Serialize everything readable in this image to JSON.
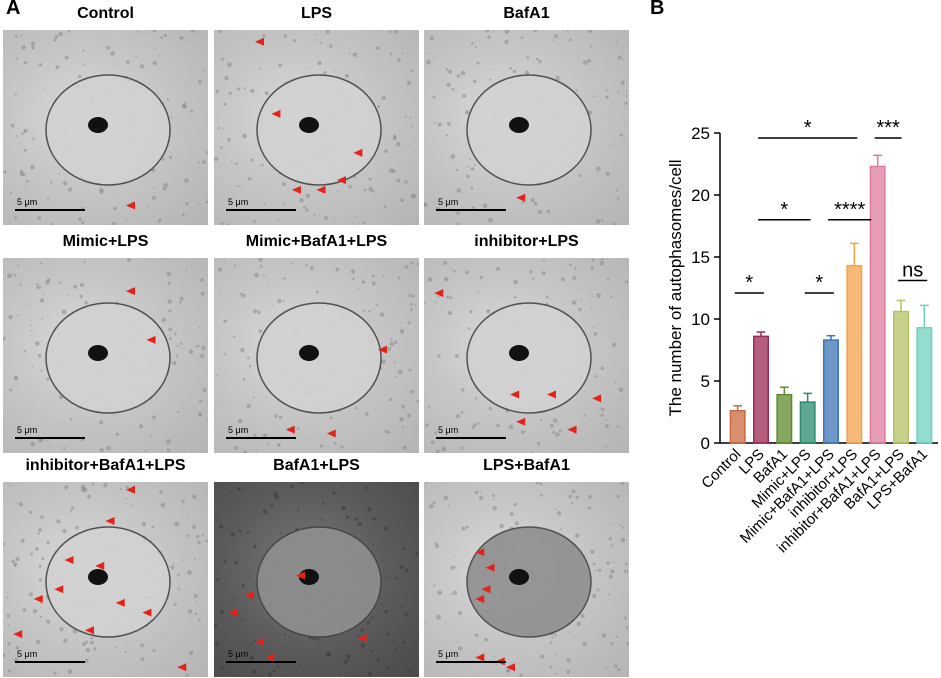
{
  "panel_a": {
    "letter": "A",
    "scale_label": "5 μm",
    "images": [
      {
        "title": "Control",
        "tone": "light",
        "nucleus": "light"
      },
      {
        "title": "LPS",
        "tone": "light",
        "nucleus": "light"
      },
      {
        "title": "BafA1",
        "tone": "light",
        "nucleus": "light"
      },
      {
        "title": "Mimic+LPS",
        "tone": "light",
        "nucleus": "light"
      },
      {
        "title": "Mimic+BafA1+LPS",
        "tone": "light",
        "nucleus": "light"
      },
      {
        "title": "inhibitor+LPS",
        "tone": "light",
        "nucleus": "light"
      },
      {
        "title": "inhibitor+BafA1+LPS",
        "tone": "light",
        "nucleus": "light"
      },
      {
        "title": "BafA1+LPS",
        "tone": "dark",
        "nucleus": "dark"
      },
      {
        "title": "LPS+BafA1",
        "tone": "light",
        "nucleus": "dark"
      }
    ],
    "arrow_color": "#e32219"
  },
  "panel_b": {
    "letter": "B"
  },
  "chart_data": {
    "type": "bar",
    "ylabel": "The number of autophasomes/cell",
    "ylim": [
      0,
      25
    ],
    "yticks": [
      0,
      5,
      10,
      15,
      20,
      25
    ],
    "categories": [
      "Control",
      "LPS",
      "BafA1",
      "Mimic+LPS",
      "Mimic+BafA1+LPS",
      "inhibitor+LPS",
      "inhibitor+BafA1+LPS",
      "BafA1+LPS",
      "LPS+BafA1"
    ],
    "values": [
      2.6,
      8.6,
      3.9,
      3.3,
      8.3,
      14.3,
      22.3,
      10.6,
      9.3
    ],
    "errors": [
      0.4,
      0.35,
      0.6,
      0.7,
      0.35,
      1.8,
      0.9,
      0.9,
      1.8
    ],
    "colors": [
      "#c96a3f",
      "#9b2a55",
      "#5c8a2d",
      "#2a8a6e",
      "#3d73b5",
      "#f4a24a",
      "#de7c9d",
      "#b4c265",
      "#6fd0be"
    ],
    "significance": [
      {
        "from": 0,
        "to": 1,
        "y": 12.1,
        "label": "*"
      },
      {
        "from": 1,
        "to": 5,
        "y": 24.6,
        "label": "*"
      },
      {
        "from": 6,
        "to": 6.9,
        "y": 24.6,
        "label": "***"
      },
      {
        "from": 1,
        "to": 3,
        "y": 18.0,
        "label": "*"
      },
      {
        "from": 4,
        "to": 5.6,
        "y": 18.0,
        "label": "****"
      },
      {
        "from": 3,
        "to": 4,
        "y": 12.1,
        "label": "*"
      },
      {
        "from": 7,
        "to": 8,
        "y": 13.1,
        "label": "ns"
      }
    ],
    "grid": false
  }
}
